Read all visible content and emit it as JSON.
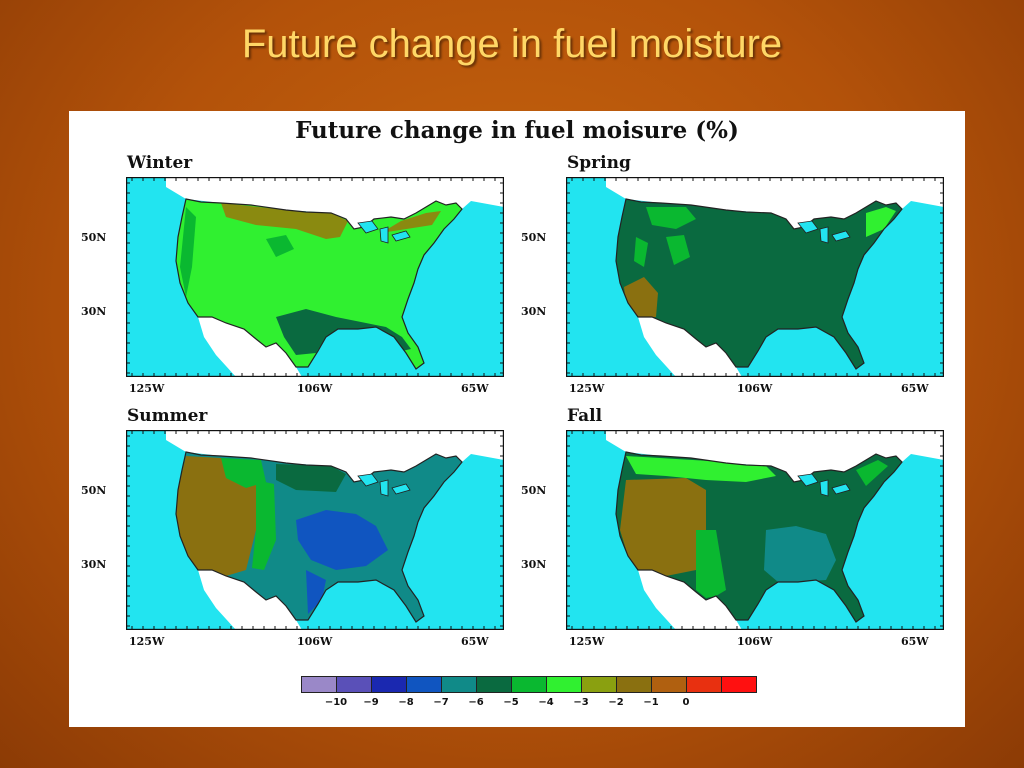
{
  "slide": {
    "title": "Future change in fuel moisture"
  },
  "figure": {
    "title": "Future change in fuel moisure (%)",
    "panels": [
      {
        "label": "Winter",
        "lat_labels": [
          "50N",
          "30N"
        ],
        "lon_labels": [
          "125W",
          "106W",
          "65W"
        ]
      },
      {
        "label": "Spring",
        "lat_labels": [
          "50N",
          "30N"
        ],
        "lon_labels": [
          "125W",
          "106W",
          "65W"
        ]
      },
      {
        "label": "Summer",
        "lat_labels": [
          "50N",
          "30N"
        ],
        "lon_labels": [
          "125W",
          "106W",
          "65W"
        ]
      },
      {
        "label": "Fall",
        "lat_labels": [
          "50N",
          "30N"
        ],
        "lon_labels": [
          "125W",
          "106W",
          "65W"
        ]
      }
    ],
    "colorbar": {
      "ticks": [
        "−10",
        "−9",
        "−8",
        "−7",
        "−6",
        "−5",
        "−4",
        "−3",
        "−2",
        "−1",
        "0"
      ],
      "colors": [
        "#9a88c8",
        "#5a50b8",
        "#1a28b0",
        "#1055c0",
        "#108a88",
        "#0a6a40",
        "#0ab830",
        "#30f030",
        "#8aa010",
        "#8a7010",
        "#b06010",
        "#e83010",
        "#ff1010"
      ]
    }
  }
}
